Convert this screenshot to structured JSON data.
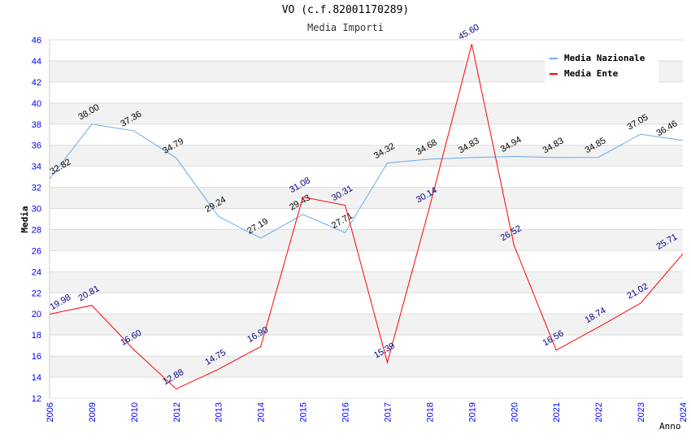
{
  "chart_data": {
    "type": "line",
    "title": "VO (c.f.82001170289)",
    "subtitle": "Media Importi",
    "xlabel": "Anno",
    "ylabel": "Media",
    "ylim": [
      12,
      46
    ],
    "yticks": [
      12,
      14,
      16,
      18,
      20,
      22,
      24,
      26,
      28,
      30,
      32,
      34,
      36,
      38,
      40,
      42,
      44,
      46
    ],
    "categories": [
      "2006",
      "2009",
      "2010",
      "2012",
      "2013",
      "2014",
      "2015",
      "2016",
      "2017",
      "2018",
      "2019",
      "2020",
      "2021",
      "2022",
      "2023",
      "2024"
    ],
    "series": [
      {
        "name": "Media Nazionale",
        "color": "#66aaee",
        "label_color": "#000000",
        "values": [
          32.82,
          38.0,
          37.36,
          34.79,
          29.24,
          27.19,
          29.43,
          27.71,
          34.32,
          34.68,
          34.83,
          34.94,
          34.83,
          34.85,
          37.05,
          36.46
        ]
      },
      {
        "name": "Media Ente",
        "color": "#ff0000",
        "label_color": "#000080",
        "values": [
          19.98,
          20.81,
          16.6,
          12.88,
          14.75,
          16.9,
          31.08,
          30.31,
          15.39,
          30.14,
          45.6,
          26.52,
          16.56,
          18.74,
          21.02,
          25.71
        ]
      }
    ],
    "legend": "top-right",
    "grid": true
  }
}
